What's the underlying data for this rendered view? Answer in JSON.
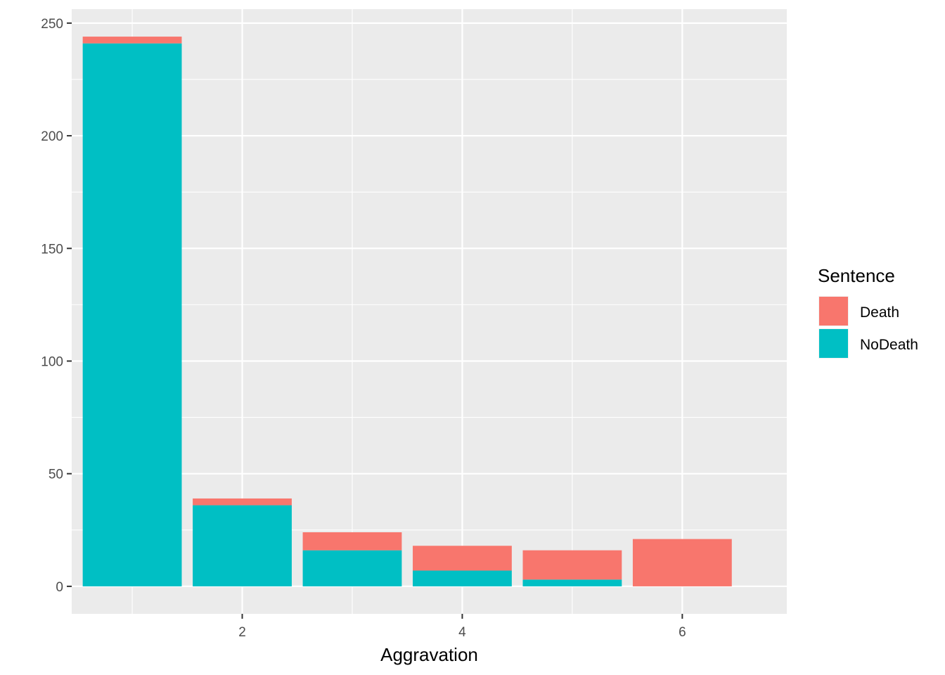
{
  "chart_data": {
    "type": "bar",
    "stacked": true,
    "title": "",
    "xlabel": "Aggravation",
    "ylabel": "",
    "x": [
      1,
      2,
      3,
      4,
      5,
      6
    ],
    "series": [
      {
        "name": "NoDeath",
        "color": "#00BFC4",
        "values": [
          241,
          36,
          16,
          7,
          3,
          0
        ]
      },
      {
        "name": "Death",
        "color": "#F8766D",
        "values": [
          3,
          3,
          8,
          11,
          13,
          21
        ]
      }
    ],
    "xlim": [
      0.45,
      6.95
    ],
    "ylim": [
      -12.2,
      256.2
    ],
    "x_ticks": [
      2,
      4,
      6
    ],
    "x_tick_labels": [
      "2",
      "4",
      "6"
    ],
    "x_minor_ticks": [
      1,
      3,
      5
    ],
    "y_ticks": [
      0,
      50,
      100,
      150,
      200,
      250
    ],
    "y_tick_labels": [
      "0",
      "50",
      "100",
      "150",
      "200",
      "250"
    ],
    "y_minor_ticks": [
      25,
      75,
      125,
      175,
      225
    ],
    "grid": true,
    "legend": {
      "title": "Sentence",
      "placement": "right",
      "entries": [
        {
          "label": "Death",
          "color": "#F8766D"
        },
        {
          "label": "NoDeath",
          "color": "#00BFC4"
        }
      ]
    },
    "panel_background": "#EBEBEB",
    "grid_color": "#FFFFFF"
  }
}
